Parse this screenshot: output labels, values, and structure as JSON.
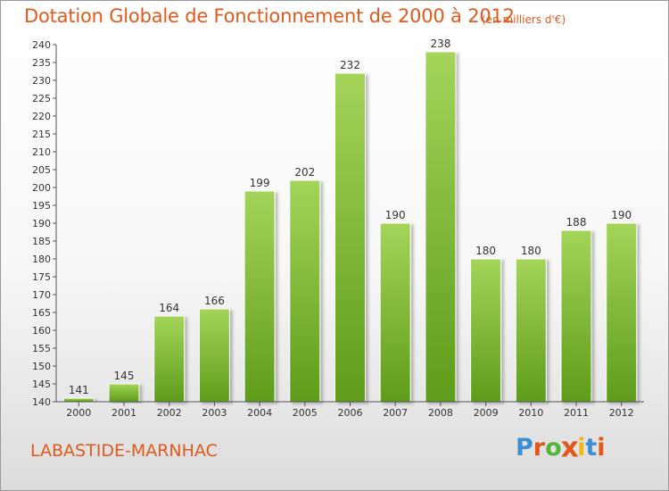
{
  "header": {
    "title": "Dotation Globale de Fonctionnement de 2000 à 2012",
    "unit": "(en milliers d'€)"
  },
  "footer": {
    "commune": "LABASTIDE-MARNHAC",
    "logo_text": "Proxiti",
    "logo_colors": [
      "#3a8fd6",
      "#e0591c",
      "#56b33a",
      "#e0591c",
      "#f2b81a",
      "#3a8fd6",
      "#e0591c"
    ]
  },
  "chart_data": {
    "type": "bar",
    "title": "Dotation Globale de Fonctionnement de 2000 à 2012",
    "subtitle": "(en milliers d'€)",
    "xlabel": "",
    "ylabel": "",
    "categories": [
      "2000",
      "2001",
      "2002",
      "2003",
      "2004",
      "2005",
      "2006",
      "2007",
      "2008",
      "2009",
      "2010",
      "2011",
      "2012"
    ],
    "values": [
      141,
      145,
      164,
      166,
      199,
      202,
      232,
      190,
      238,
      180,
      180,
      188,
      190
    ],
    "ylim": [
      140,
      240
    ],
    "ytick_step": 5,
    "grid": false,
    "colors": {
      "bar_light": "#a4d45a",
      "bar_dark": "#5e9c1a",
      "axis": "#555555",
      "label": "#333333"
    }
  }
}
